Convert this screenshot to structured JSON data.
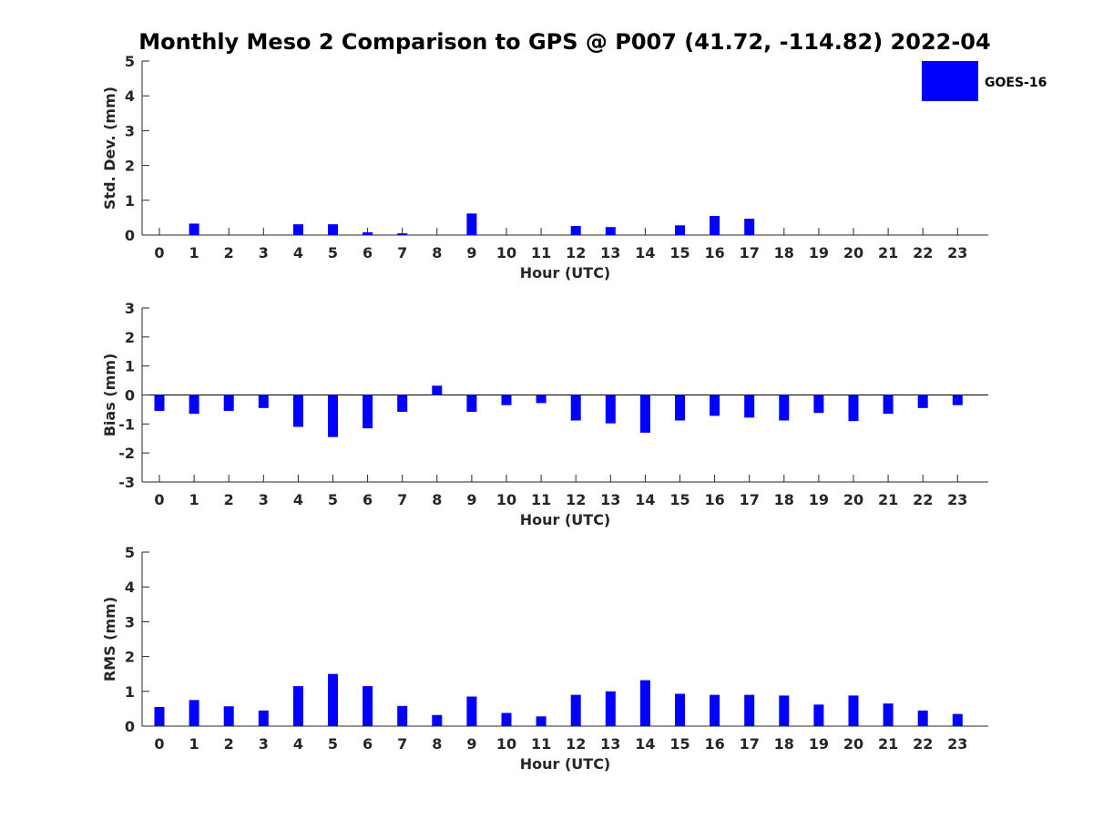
{
  "title": "Monthly Meso 2 Comparison to GPS @ P007 (41.72, -114.82) 2022-04",
  "legend": {
    "label": "GOES-16",
    "color": "#0000ff",
    "placement": "top-right"
  },
  "chart_data": [
    {
      "type": "bar",
      "ylabel": "Std. Dev. (mm)",
      "xlabel": "Hour (UTC)",
      "categories": [
        "0",
        "1",
        "2",
        "3",
        "4",
        "5",
        "6",
        "7",
        "8",
        "9",
        "10",
        "11",
        "12",
        "13",
        "14",
        "15",
        "16",
        "17",
        "18",
        "19",
        "20",
        "21",
        "22",
        "23"
      ],
      "ylim": [
        0,
        5
      ],
      "yticks": [
        "0",
        "1",
        "2",
        "3",
        "4",
        "5"
      ],
      "series": [
        {
          "name": "GOES-16",
          "color": "#0000ff",
          "values": [
            0,
            0.33,
            0,
            0,
            0.31,
            0.31,
            0.08,
            0.05,
            0,
            0.62,
            0,
            0,
            0.26,
            0.23,
            0,
            0.28,
            0.55,
            0.47,
            0,
            0,
            0,
            0,
            0,
            0
          ]
        }
      ]
    },
    {
      "type": "bar",
      "ylabel": "Bias (mm)",
      "xlabel": "Hour (UTC)",
      "categories": [
        "0",
        "1",
        "2",
        "3",
        "4",
        "5",
        "6",
        "7",
        "8",
        "9",
        "10",
        "11",
        "12",
        "13",
        "14",
        "15",
        "16",
        "17",
        "18",
        "19",
        "20",
        "21",
        "22",
        "23"
      ],
      "ylim": [
        -3,
        3
      ],
      "yticks": [
        "-3",
        "-2",
        "-1",
        "0",
        "1",
        "2",
        "3"
      ],
      "series": [
        {
          "name": "GOES-16",
          "color": "#0000ff",
          "values": [
            -0.55,
            -0.65,
            -0.55,
            -0.45,
            -1.1,
            -1.45,
            -1.15,
            -0.58,
            0.32,
            -0.58,
            -0.35,
            -0.28,
            -0.88,
            -0.98,
            -1.3,
            -0.88,
            -0.72,
            -0.78,
            -0.88,
            -0.62,
            -0.9,
            -0.65,
            -0.45,
            -0.35
          ]
        }
      ]
    },
    {
      "type": "bar",
      "ylabel": "RMS (mm)",
      "xlabel": "Hour (UTC)",
      "categories": [
        "0",
        "1",
        "2",
        "3",
        "4",
        "5",
        "6",
        "7",
        "8",
        "9",
        "10",
        "11",
        "12",
        "13",
        "14",
        "15",
        "16",
        "17",
        "18",
        "19",
        "20",
        "21",
        "22",
        "23"
      ],
      "ylim": [
        0,
        5
      ],
      "yticks": [
        "0",
        "1",
        "2",
        "3",
        "4",
        "5"
      ],
      "series": [
        {
          "name": "GOES-16",
          "color": "#0000ff",
          "values": [
            0.55,
            0.75,
            0.57,
            0.45,
            1.15,
            1.5,
            1.15,
            0.58,
            0.32,
            0.85,
            0.38,
            0.28,
            0.9,
            1.0,
            1.32,
            0.93,
            0.9,
            0.9,
            0.88,
            0.62,
            0.88,
            0.65,
            0.45,
            0.35
          ]
        }
      ]
    }
  ]
}
